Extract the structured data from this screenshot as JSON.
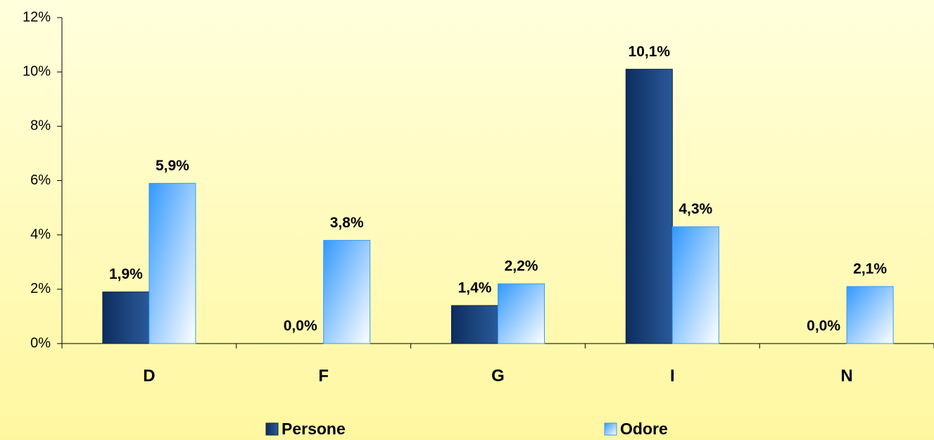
{
  "chart_data": {
    "type": "bar",
    "categories": [
      "D",
      "F",
      "G",
      "I",
      "N"
    ],
    "series": [
      {
        "name": "Persone",
        "color": "#0d2d5e",
        "values": [
          1.9,
          0.0,
          1.4,
          10.1,
          0.0
        ],
        "value_labels": [
          "1,9%",
          "0,0%",
          "1,4%",
          "10,1%",
          "0,0%"
        ]
      },
      {
        "name": "Odore",
        "color": "#3399ff",
        "values": [
          5.9,
          3.8,
          2.2,
          4.3,
          2.1
        ],
        "value_labels": [
          "5,9%",
          "3,8%",
          "2,2%",
          "4,3%",
          "2,1%"
        ]
      }
    ],
    "ylim": [
      0,
      12
    ],
    "yticks": [
      {
        "value": 0,
        "label": "0%"
      },
      {
        "value": 2,
        "label": "2%"
      },
      {
        "value": 4,
        "label": "4%"
      },
      {
        "value": 6,
        "label": "6%"
      },
      {
        "value": 8,
        "label": "8%"
      },
      {
        "value": 10,
        "label": "10%"
      },
      {
        "value": 12,
        "label": "12%"
      }
    ],
    "grid": false,
    "legend": "bottom"
  }
}
